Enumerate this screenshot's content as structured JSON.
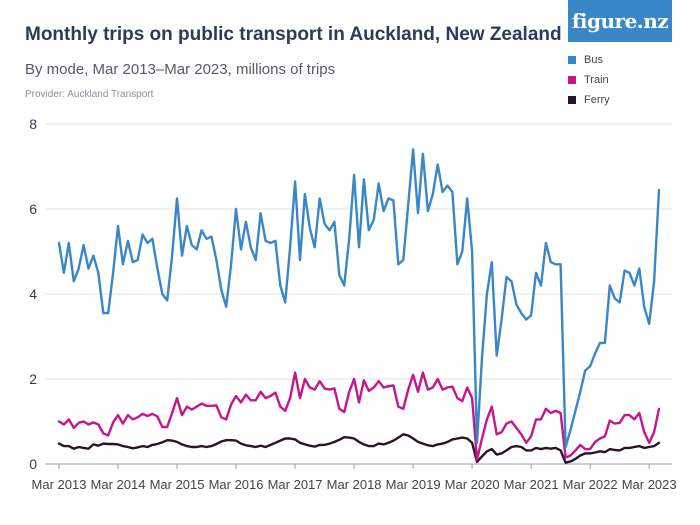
{
  "title": "Monthly trips on public transport in Auckland, New Zealand",
  "subtitle": "By mode, Mar 2013–Mar 2023, millions of trips",
  "provider": "Provider: Auckland Transport",
  "logo_text": "figure.nz",
  "chart_data": {
    "type": "line",
    "title": "Monthly trips on public transport in Auckland, New Zealand",
    "subtitle": "By mode, Mar 2013–Mar 2023, millions of trips",
    "xlabel": "",
    "ylabel": "millions of trips",
    "ylim": [
      0,
      8
    ],
    "yticks": [
      0,
      2,
      4,
      6,
      8
    ],
    "grid": true,
    "legend_position": "top-right",
    "x_start": "Mar 2013",
    "x_tick_labels": [
      "Mar 2013",
      "Mar 2014",
      "Mar 2015",
      "Mar 2016",
      "Mar 2017",
      "Mar 2018",
      "Mar 2019",
      "Mar 2020",
      "Mar 2021",
      "Mar 2022",
      "Mar 2023"
    ],
    "series": [
      {
        "name": "Bus",
        "color": "#3a87c8",
        "values": [
          5.2,
          4.5,
          5.2,
          4.3,
          4.6,
          5.15,
          4.6,
          4.9,
          4.5,
          3.55,
          3.55,
          4.5,
          5.6,
          4.7,
          5.25,
          4.75,
          4.8,
          5.4,
          5.2,
          5.3,
          4.6,
          4.0,
          3.85,
          4.9,
          6.25,
          4.9,
          5.6,
          5.15,
          5.05,
          5.5,
          5.3,
          5.35,
          4.8,
          4.1,
          3.7,
          4.7,
          6.0,
          5.05,
          5.7,
          5.1,
          4.8,
          5.9,
          5.25,
          5.2,
          5.25,
          4.2,
          3.8,
          5.1,
          6.65,
          4.8,
          6.35,
          5.55,
          5.1,
          6.25,
          5.65,
          5.5,
          5.7,
          4.45,
          4.2,
          5.3,
          6.8,
          5.1,
          6.7,
          5.5,
          5.75,
          6.6,
          5.95,
          6.25,
          6.2,
          4.7,
          4.8,
          6.1,
          7.4,
          5.9,
          7.3,
          5.95,
          6.35,
          7.05,
          6.4,
          6.55,
          6.4,
          4.7,
          5.0,
          6.25,
          5.0,
          0.5,
          2.5,
          4.0,
          4.75,
          2.55,
          3.4,
          4.4,
          4.3,
          3.75,
          3.55,
          3.4,
          3.5,
          4.5,
          4.2,
          5.2,
          4.75,
          4.7,
          4.7,
          0.4,
          0.8,
          1.25,
          1.7,
          2.2,
          2.3,
          2.6,
          2.85,
          2.85,
          4.2,
          3.9,
          3.8,
          4.55,
          4.5,
          4.2,
          4.6,
          3.7,
          3.3,
          4.3,
          6.45
        ]
      },
      {
        "name": "Train",
        "color": "#c5168c",
        "values": [
          1.0,
          0.93,
          1.05,
          0.85,
          0.97,
          1.0,
          0.93,
          0.98,
          0.93,
          0.72,
          0.67,
          0.98,
          1.15,
          0.95,
          1.15,
          1.05,
          1.1,
          1.18,
          1.13,
          1.18,
          1.12,
          0.87,
          0.87,
          1.2,
          1.55,
          1.15,
          1.35,
          1.28,
          1.35,
          1.42,
          1.37,
          1.37,
          1.38,
          1.1,
          1.05,
          1.4,
          1.6,
          1.45,
          1.63,
          1.5,
          1.5,
          1.7,
          1.55,
          1.6,
          1.68,
          1.35,
          1.25,
          1.55,
          2.15,
          1.55,
          2.0,
          1.8,
          1.75,
          1.95,
          1.78,
          1.75,
          1.78,
          1.3,
          1.22,
          1.7,
          2.0,
          1.45,
          1.97,
          1.72,
          1.8,
          1.95,
          1.8,
          1.83,
          1.85,
          1.35,
          1.3,
          1.75,
          2.1,
          1.7,
          2.15,
          1.75,
          1.8,
          2.0,
          1.75,
          1.8,
          1.82,
          1.55,
          1.48,
          1.8,
          1.55,
          0.1,
          0.6,
          1.05,
          1.35,
          0.7,
          0.75,
          0.95,
          1.0,
          0.85,
          0.7,
          0.5,
          0.65,
          1.05,
          1.05,
          1.3,
          1.2,
          1.25,
          1.2,
          0.15,
          0.2,
          0.32,
          0.45,
          0.35,
          0.35,
          0.52,
          0.6,
          0.65,
          1.02,
          0.95,
          0.97,
          1.15,
          1.15,
          1.05,
          1.2,
          0.75,
          0.5,
          0.75,
          1.3
        ]
      },
      {
        "name": "Ferry",
        "color": "#2a1526",
        "values": [
          0.48,
          0.42,
          0.42,
          0.36,
          0.4,
          0.38,
          0.36,
          0.46,
          0.43,
          0.48,
          0.47,
          0.47,
          0.46,
          0.42,
          0.4,
          0.37,
          0.39,
          0.42,
          0.4,
          0.45,
          0.47,
          0.51,
          0.56,
          0.55,
          0.52,
          0.46,
          0.42,
          0.4,
          0.4,
          0.42,
          0.4,
          0.42,
          0.47,
          0.53,
          0.56,
          0.56,
          0.55,
          0.48,
          0.44,
          0.42,
          0.4,
          0.43,
          0.4,
          0.45,
          0.5,
          0.55,
          0.6,
          0.6,
          0.58,
          0.5,
          0.46,
          0.43,
          0.41,
          0.45,
          0.45,
          0.48,
          0.52,
          0.57,
          0.63,
          0.62,
          0.6,
          0.52,
          0.46,
          0.42,
          0.42,
          0.48,
          0.46,
          0.5,
          0.55,
          0.62,
          0.7,
          0.67,
          0.6,
          0.52,
          0.48,
          0.44,
          0.42,
          0.46,
          0.48,
          0.52,
          0.58,
          0.6,
          0.62,
          0.6,
          0.5,
          0.05,
          0.18,
          0.3,
          0.35,
          0.22,
          0.25,
          0.32,
          0.4,
          0.42,
          0.4,
          0.32,
          0.32,
          0.38,
          0.35,
          0.38,
          0.36,
          0.38,
          0.32,
          0.03,
          0.06,
          0.12,
          0.2,
          0.25,
          0.25,
          0.27,
          0.3,
          0.28,
          0.35,
          0.33,
          0.32,
          0.38,
          0.38,
          0.4,
          0.42,
          0.38,
          0.4,
          0.42,
          0.5
        ]
      }
    ]
  }
}
